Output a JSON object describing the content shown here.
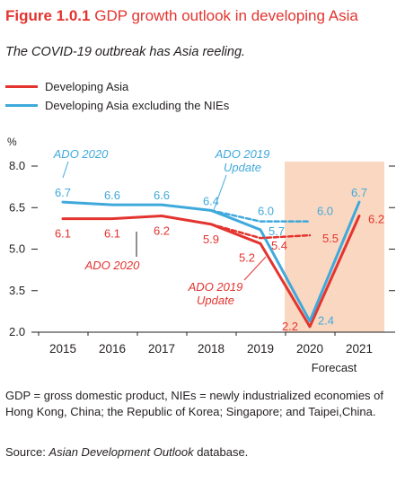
{
  "header": {
    "figure_label": "Figure 1.0.1",
    "title": "GDP growth outlook in developing Asia",
    "subtitle": "The COVID-19 outbreak has Asia reeling."
  },
  "legend": [
    {
      "label": "Developing Asia",
      "color": "#e3342f"
    },
    {
      "label": "Developing Asia excluding the NIEs",
      "color": "#3fa9dc"
    }
  ],
  "chart_data": {
    "type": "line",
    "ylabel": "%",
    "ylim": [
      2.0,
      8.0
    ],
    "yticks": [
      "2.0",
      "3.5",
      "5.0",
      "6.5",
      "8.0"
    ],
    "x": [
      "2015",
      "2016",
      "2017",
      "2018",
      "2019",
      "2020",
      "2021"
    ],
    "x_sublabel": {
      "2020": "Forecast"
    },
    "forecast_shading": "2020–2021",
    "series": [
      {
        "name": "Developing Asia",
        "color": "#e3342f",
        "label": "ADO 2020",
        "values": [
          6.1,
          6.1,
          6.2,
          5.9,
          5.2,
          2.2,
          6.2
        ],
        "data_labels": [
          "6.1",
          "6.1",
          "6.2",
          "5.9",
          "5.2",
          "2.2",
          "6.2"
        ]
      },
      {
        "name": "Developing Asia excluding the NIEs",
        "color": "#3fa9dc",
        "label": "ADO 2020",
        "values": [
          6.7,
          6.6,
          6.6,
          6.4,
          5.7,
          2.4,
          6.7
        ],
        "data_labels": [
          "6.7",
          "6.6",
          "6.6",
          "6.4",
          "5.7",
          "2.4",
          "6.7"
        ]
      },
      {
        "name": "Developing Asia",
        "color": "#e3342f",
        "label": "ADO 2019 Update",
        "dashed": true,
        "x": [
          "2018",
          "2019",
          "2020"
        ],
        "values": [
          5.9,
          5.4,
          5.5
        ],
        "data_labels": [
          "",
          "5.4",
          "5.5"
        ]
      },
      {
        "name": "Developing Asia excluding the NIEs",
        "color": "#3fa9dc",
        "label": "ADO 2019 Update",
        "dashed": true,
        "x": [
          "2018",
          "2019",
          "2020"
        ],
        "values": [
          6.4,
          6.0,
          6.0
        ],
        "data_labels": [
          "",
          "6.0",
          "6.0"
        ]
      }
    ],
    "annotations": [
      {
        "text": "ADO 2020",
        "color": "#3fa9dc"
      },
      {
        "text": "ADO 2019",
        "color": "#3fa9dc"
      },
      {
        "text": "Update",
        "color": "#3fa9dc"
      },
      {
        "text": "ADO 2020",
        "color": "#e3342f"
      },
      {
        "text": "ADO 2019",
        "color": "#e3342f"
      },
      {
        "text": "Update",
        "color": "#e3342f"
      }
    ],
    "forecast_color": "#fad7c1"
  },
  "footnote": "GDP = gross domestic product, NIEs = newly industrialized economies of Hong Kong, China; the Republic of Korea; Singapore; and Taipei,China.",
  "source": {
    "prefix": "Source: ",
    "name": "Asian Development Outlook",
    "suffix": " database."
  }
}
